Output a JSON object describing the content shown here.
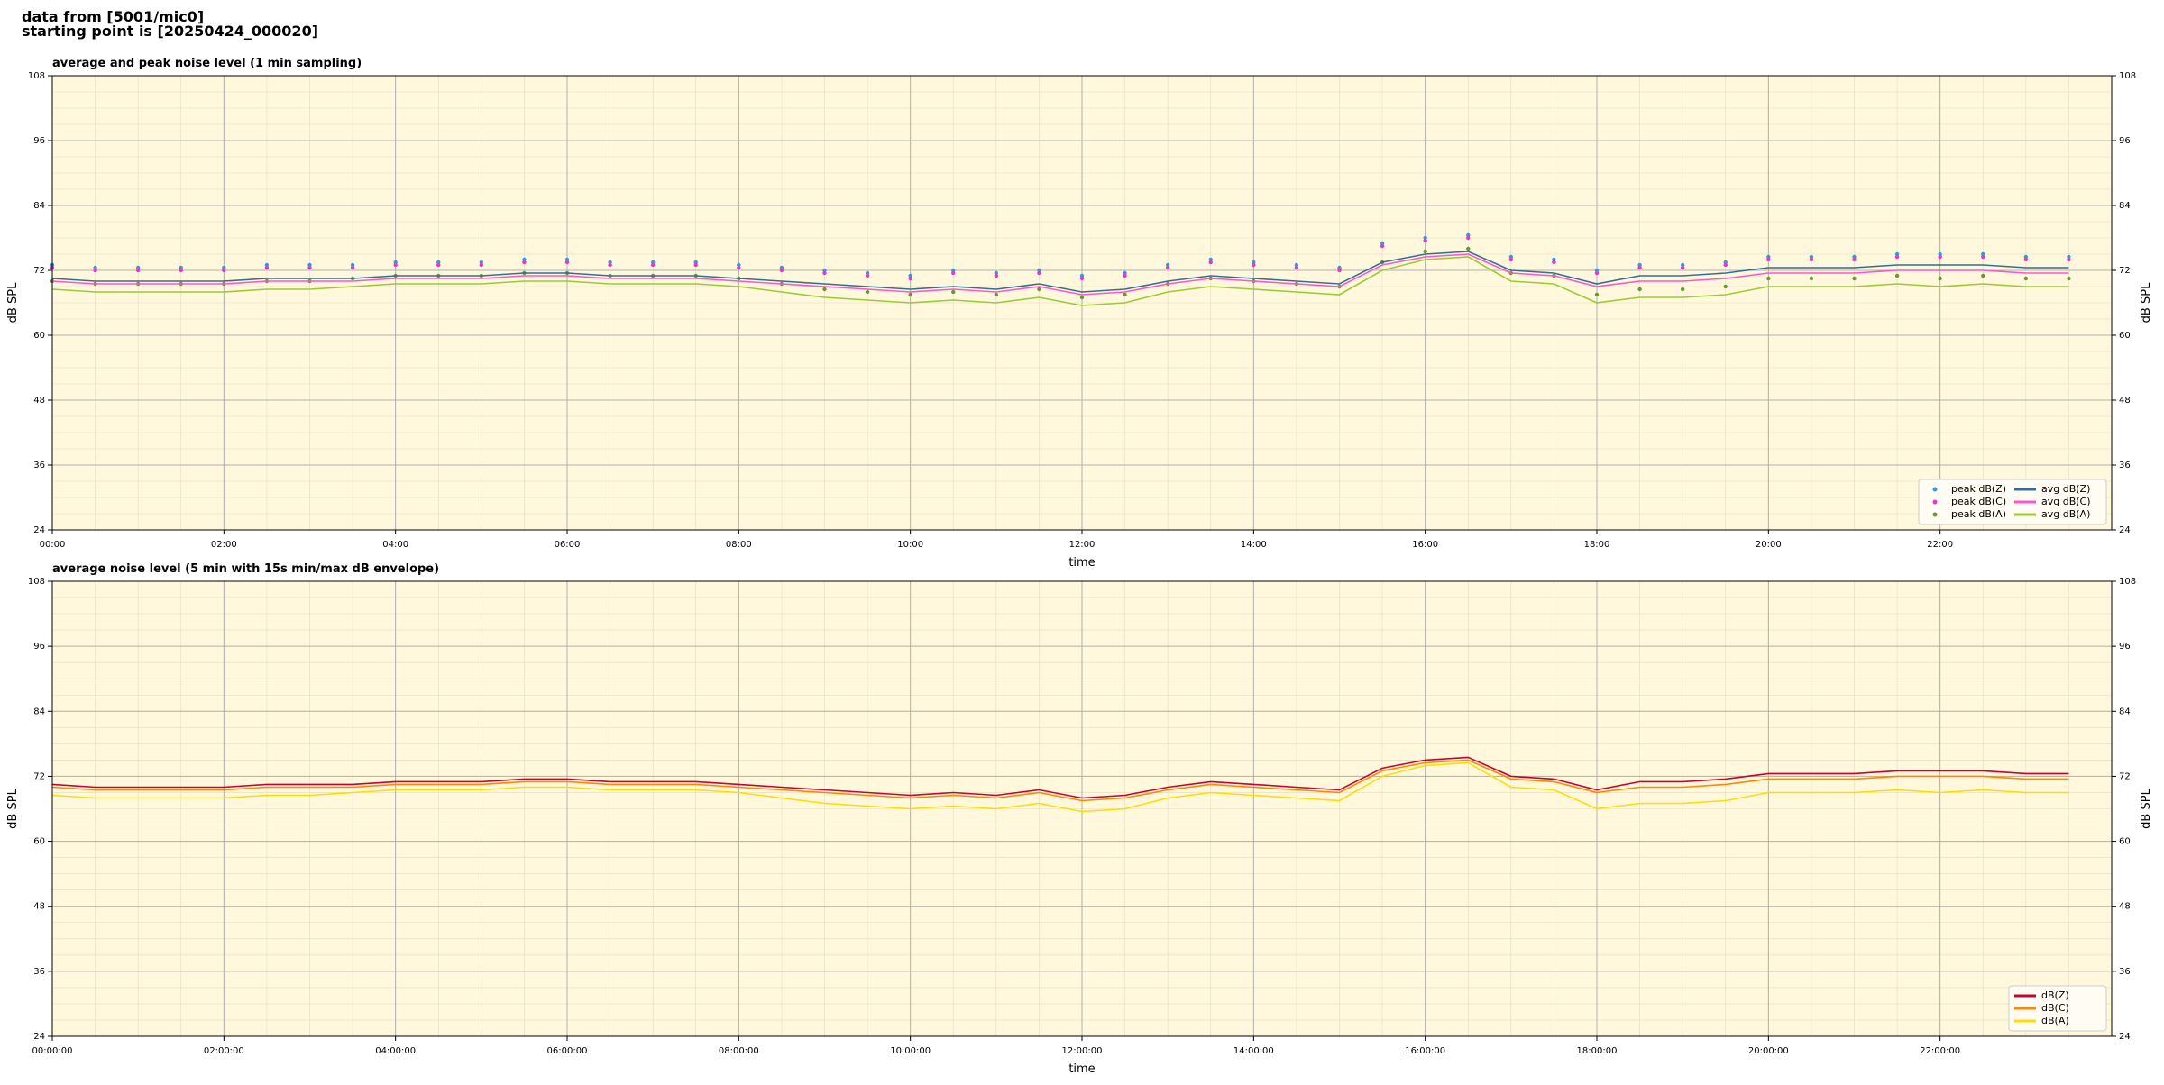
{
  "header": {
    "lines": [
      "data from [5001/mic0]",
      "starting point is [20250424_000020]"
    ]
  },
  "chart_data": [
    {
      "type": "line",
      "title": "average and peak noise level (1 min sampling)",
      "xlabel": "time",
      "ylabel": "dB SPL",
      "xlim": [
        0,
        24
      ],
      "ylim": [
        24,
        108
      ],
      "yticks": [
        24,
        36,
        48,
        60,
        72,
        84,
        96,
        108
      ],
      "xticks": [
        {
          "value": 0,
          "label": "00:00"
        },
        {
          "value": 2,
          "label": "02:00"
        },
        {
          "value": 4,
          "label": "04:00"
        },
        {
          "value": 6,
          "label": "06:00"
        },
        {
          "value": 8,
          "label": "08:00"
        },
        {
          "value": 10,
          "label": "10:00"
        },
        {
          "value": 12,
          "label": "12:00"
        },
        {
          "value": 14,
          "label": "14:00"
        },
        {
          "value": 16,
          "label": "16:00"
        },
        {
          "value": 18,
          "label": "18:00"
        },
        {
          "value": 20,
          "label": "20:00"
        },
        {
          "value": 22,
          "label": "22:00"
        }
      ],
      "grid": true,
      "background": "#fff8dc",
      "legend": "lower right",
      "legend_columns": 2,
      "x": [
        0,
        0.5,
        1,
        1.5,
        2,
        2.5,
        3,
        3.5,
        4,
        4.5,
        5,
        5.5,
        6,
        6.5,
        7,
        7.5,
        8,
        8.5,
        9,
        9.5,
        10,
        10.5,
        11,
        11.5,
        12,
        12.5,
        13,
        13.5,
        14,
        14.5,
        15,
        15.5,
        16,
        16.5,
        17,
        17.5,
        18,
        18.5,
        19,
        19.5,
        20,
        20.5,
        21,
        21.5,
        22,
        22.5,
        23,
        23.5
      ],
      "series": [
        {
          "name": "peak dB(Z)",
          "type": "scatter",
          "color": "#3399dd",
          "values": [
            73,
            72.5,
            72.5,
            72.5,
            72.5,
            73,
            73,
            73,
            73.5,
            73.5,
            73.5,
            74,
            74,
            73.5,
            73.5,
            73.5,
            73,
            72.5,
            72,
            71.5,
            71,
            72,
            71.5,
            72,
            71,
            71.5,
            73,
            74,
            73.5,
            73,
            72.5,
            77,
            78,
            78.5,
            74.5,
            74,
            72,
            73,
            73,
            73.5,
            74.5,
            74.5,
            74.5,
            75,
            75,
            75,
            74.5,
            74.5
          ]
        },
        {
          "name": "peak dB(C)",
          "type": "scatter",
          "color": "#ee33cc",
          "values": [
            72.5,
            72,
            72,
            72,
            72,
            72.5,
            72.5,
            72.5,
            73,
            73,
            73,
            73.5,
            73.5,
            73,
            73,
            73,
            72.5,
            72,
            71.5,
            71,
            70.5,
            71.5,
            71,
            71.5,
            70.5,
            71,
            72.5,
            73.5,
            73,
            72.5,
            72,
            76.5,
            77.5,
            78,
            74,
            73.5,
            71.5,
            72.5,
            72.5,
            73,
            74,
            74,
            74,
            74.5,
            74.5,
            74.5,
            74,
            74
          ]
        },
        {
          "name": "peak dB(A)",
          "type": "scatter",
          "color": "#669933",
          "values": [
            70,
            69.5,
            69.5,
            69.5,
            69.5,
            70,
            70,
            70.5,
            71,
            71,
            71,
            71.5,
            71.5,
            71,
            71,
            71,
            70.5,
            69.5,
            68.5,
            68,
            67.5,
            68,
            67.5,
            68.5,
            67,
            67.5,
            69.5,
            70.5,
            70,
            69.5,
            69,
            73.5,
            75.5,
            76,
            71.5,
            71,
            67.5,
            68.5,
            68.5,
            69,
            70.5,
            70.5,
            70.5,
            71,
            70.5,
            71,
            70.5,
            70.5
          ]
        },
        {
          "name": "avg dB(Z)",
          "type": "line",
          "color": "#336e99",
          "values": [
            70.5,
            70,
            70,
            70,
            70,
            70.5,
            70.5,
            70.5,
            71,
            71,
            71,
            71.5,
            71.5,
            71,
            71,
            71,
            70.5,
            70,
            69.5,
            69,
            68.5,
            69,
            68.5,
            69.5,
            68,
            68.5,
            70,
            71,
            70.5,
            70,
            69.5,
            73.5,
            75,
            75.5,
            72,
            71.5,
            69.5,
            71,
            71,
            71.5,
            72.5,
            72.5,
            72.5,
            73,
            73,
            73,
            72.5,
            72.5
          ]
        },
        {
          "name": "avg dB(C)",
          "type": "line",
          "color": "#ff55cc",
          "values": [
            70,
            69.5,
            69.5,
            69.5,
            69.5,
            70,
            70,
            70,
            70.5,
            70.5,
            70.5,
            71,
            71,
            70.5,
            70.5,
            70.5,
            70,
            69.5,
            69,
            68.5,
            68,
            68.5,
            68,
            69,
            67.5,
            68,
            69.5,
            70.5,
            70,
            69.5,
            69,
            73,
            74.5,
            75,
            71.5,
            71,
            69,
            70,
            70,
            70.5,
            71.5,
            71.5,
            71.5,
            72,
            72,
            72,
            71.5,
            71.5
          ]
        },
        {
          "name": "avg dB(A)",
          "type": "line",
          "color": "#99cc33",
          "values": [
            68.5,
            68,
            68,
            68,
            68,
            68.5,
            68.5,
            69,
            69.5,
            69.5,
            69.5,
            70,
            70,
            69.5,
            69.5,
            69.5,
            69,
            68,
            67,
            66.5,
            66,
            66.5,
            66,
            67,
            65.5,
            66,
            68,
            69,
            68.5,
            68,
            67.5,
            72,
            74,
            74.5,
            70,
            69.5,
            66,
            67,
            67,
            67.5,
            69,
            69,
            69,
            69.5,
            69,
            69.5,
            69,
            69
          ]
        }
      ]
    },
    {
      "type": "line",
      "title": "average noise level (5 min with 15s min/max dB envelope)",
      "xlabel": "time",
      "ylabel": "dB SPL",
      "xlim": [
        0,
        24
      ],
      "ylim": [
        24,
        108
      ],
      "yticks": [
        24,
        36,
        48,
        60,
        72,
        84,
        96,
        108
      ],
      "xticks": [
        {
          "value": 0,
          "label": "00:00:00"
        },
        {
          "value": 2,
          "label": "02:00:00"
        },
        {
          "value": 4,
          "label": "04:00:00"
        },
        {
          "value": 6,
          "label": "06:00:00"
        },
        {
          "value": 8,
          "label": "08:00:00"
        },
        {
          "value": 10,
          "label": "10:00:00"
        },
        {
          "value": 12,
          "label": "12:00:00"
        },
        {
          "value": 14,
          "label": "14:00:00"
        },
        {
          "value": 16,
          "label": "16:00:00"
        },
        {
          "value": 18,
          "label": "18:00:00"
        },
        {
          "value": 20,
          "label": "20:00:00"
        },
        {
          "value": 22,
          "label": "22:00:00"
        }
      ],
      "grid": true,
      "background": "#fff8dc",
      "legend": "lower right",
      "legend_columns": 1,
      "x": [
        0,
        0.5,
        1,
        1.5,
        2,
        2.5,
        3,
        3.5,
        4,
        4.5,
        5,
        5.5,
        6,
        6.5,
        7,
        7.5,
        8,
        8.5,
        9,
        9.5,
        10,
        10.5,
        11,
        11.5,
        12,
        12.5,
        13,
        13.5,
        14,
        14.5,
        15,
        15.5,
        16,
        16.5,
        17,
        17.5,
        18,
        18.5,
        19,
        19.5,
        20,
        20.5,
        21,
        21.5,
        22,
        22.5,
        23,
        23.5
      ],
      "series": [
        {
          "name": "dB(Z)",
          "type": "line",
          "color": "#cc0033",
          "values": [
            70.5,
            70,
            70,
            70,
            70,
            70.5,
            70.5,
            70.5,
            71,
            71,
            71,
            71.5,
            71.5,
            71,
            71,
            71,
            70.5,
            70,
            69.5,
            69,
            68.5,
            69,
            68.5,
            69.5,
            68,
            68.5,
            70,
            71,
            70.5,
            70,
            69.5,
            73.5,
            75,
            75.5,
            72,
            71.5,
            69.5,
            71,
            71,
            71.5,
            72.5,
            72.5,
            72.5,
            73,
            73,
            73,
            72.5,
            72.5
          ]
        },
        {
          "name": "dB(C)",
          "type": "line",
          "color": "#ff8800",
          "values": [
            70,
            69.5,
            69.5,
            69.5,
            69.5,
            70,
            70,
            70,
            70.5,
            70.5,
            70.5,
            71,
            71,
            70.5,
            70.5,
            70.5,
            70,
            69.5,
            69,
            68.5,
            68,
            68.5,
            68,
            69,
            67.5,
            68,
            69.5,
            70.5,
            70,
            69.5,
            69,
            73,
            74.5,
            75,
            71.5,
            71,
            69,
            70,
            70,
            70.5,
            71.5,
            71.5,
            71.5,
            72,
            72,
            72,
            71.5,
            71.5
          ]
        },
        {
          "name": "dB(A)",
          "type": "line",
          "color": "#ffdd00",
          "values": [
            68.5,
            68,
            68,
            68,
            68,
            68.5,
            68.5,
            69,
            69.5,
            69.5,
            69.5,
            70,
            70,
            69.5,
            69.5,
            69.5,
            69,
            68,
            67,
            66.5,
            66,
            66.5,
            66,
            67,
            65.5,
            66,
            68,
            69,
            68.5,
            68,
            67.5,
            72,
            74,
            74.5,
            70,
            69.5,
            66,
            67,
            67,
            67.5,
            69,
            69,
            69,
            69.5,
            69,
            69.5,
            69,
            69
          ]
        }
      ]
    }
  ]
}
